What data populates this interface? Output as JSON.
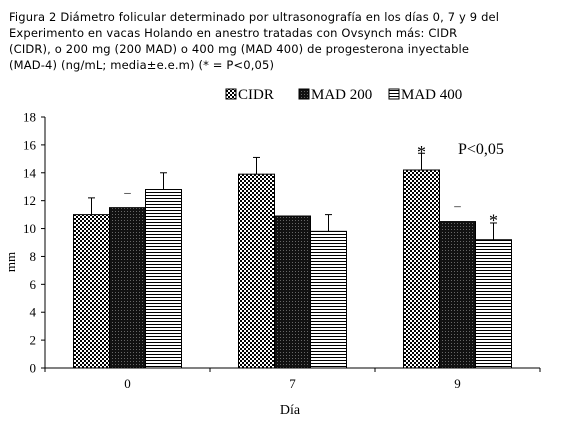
{
  "caption": "Figura 2 Diámetro folicular determinado por ultrasonografía en los días 0, 7 y 9 del\nExperimento en vacas Holando en anestro tratadas con Ovsynch más: CIDR\n(CIDR), o 200 mg (200 MAD) o 400 mg (MAD 400) de progesterona inyectable\n(MAD-4) (ng/mL; media±e.e.m) (* = P<0,05)",
  "chart_data": {
    "type": "bar",
    "title": "",
    "xlabel": "Día",
    "ylabel": "mm",
    "categories": [
      "0",
      "7",
      "9"
    ],
    "ylim": [
      0,
      18
    ],
    "yticks": [
      "0",
      "2",
      "4",
      "6",
      "8",
      "10",
      "12",
      "14",
      "16",
      "18"
    ],
    "grid": false,
    "legend_position": "top",
    "series": [
      {
        "name": "CIDR",
        "values": [
          11.0,
          13.9,
          14.2
        ],
        "errors": [
          1.2,
          1.2,
          1.2
        ],
        "pattern": "checker"
      },
      {
        "name": "MAD 200",
        "values": [
          11.5,
          10.9,
          10.5
        ],
        "errors": [
          0,
          0,
          0
        ],
        "pattern": "dark"
      },
      {
        "name": "MAD 400",
        "values": [
          12.8,
          9.8,
          9.2
        ],
        "errors": [
          1.2,
          1.2,
          1.2
        ],
        "pattern": "hstripe"
      }
    ],
    "marks": [
      {
        "text": "–",
        "category": "0",
        "series": "MAD 200",
        "y": 12.6
      },
      {
        "text": "*",
        "category": "9",
        "series": "CIDR",
        "y": 15.7
      },
      {
        "text": "–",
        "category": "9",
        "series": "MAD 200",
        "y": 11.6
      },
      {
        "text": "*",
        "category": "9",
        "series": "MAD 400",
        "y": 10.8
      }
    ],
    "annotation": "P<0,05"
  }
}
